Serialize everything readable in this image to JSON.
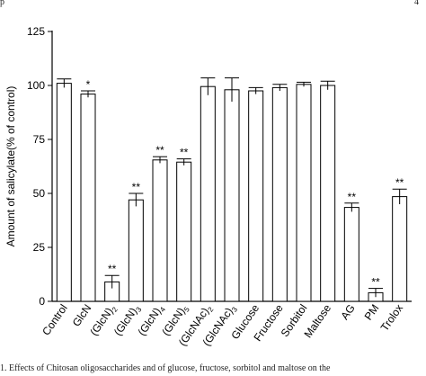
{
  "page_fragments": {
    "header_text": "p",
    "page_number": "4",
    "caption_text": "1.  Effects of Chitosan oligosaccharides and of glucose, fructose, sorbitol and maltose on the"
  },
  "colors": {
    "axis": "#000000",
    "bar_fill": "#ffffff",
    "bar_stroke": "#000000",
    "text": "#000000"
  },
  "chart_data": {
    "type": "bar",
    "title": "",
    "xlabel": "",
    "ylabel": "Amount of salicylate(% of control)",
    "ylim": [
      0,
      125
    ],
    "yticks": [
      0,
      25,
      50,
      75,
      100,
      125
    ],
    "grid": false,
    "legend": "none",
    "categories": [
      {
        "base": "Control",
        "sub": ""
      },
      {
        "base": "GlcN",
        "sub": ""
      },
      {
        "base": "(GlcN)",
        "sub": "2"
      },
      {
        "base": "(GlcN)",
        "sub": "3"
      },
      {
        "base": "(GlcN)",
        "sub": "4"
      },
      {
        "base": "(GlcN)",
        "sub": "5"
      },
      {
        "base": "(GlcNAc)",
        "sub": "2"
      },
      {
        "base": "(GlcNAc)",
        "sub": "3"
      },
      {
        "base": "Glucose",
        "sub": ""
      },
      {
        "base": "Fructose",
        "sub": ""
      },
      {
        "base": "Sorbitol",
        "sub": ""
      },
      {
        "base": "Maltose",
        "sub": ""
      },
      {
        "base": "AG",
        "sub": ""
      },
      {
        "base": "PM",
        "sub": ""
      },
      {
        "base": "Trolox",
        "sub": ""
      }
    ],
    "values": [
      101,
      96,
      9,
      47,
      65.5,
      64.5,
      99.5,
      98,
      97.5,
      99,
      100.5,
      100,
      43.5,
      4,
      48.5
    ],
    "errors": [
      2,
      1.5,
      3,
      3,
      1.5,
      1.5,
      4,
      5.5,
      1.5,
      1.5,
      1,
      2,
      2,
      2,
      3.5
    ],
    "significance": [
      "",
      "*",
      "**",
      "**",
      "**",
      "**",
      "",
      "",
      "",
      "",
      "",
      "",
      "**",
      "**",
      "**"
    ]
  }
}
